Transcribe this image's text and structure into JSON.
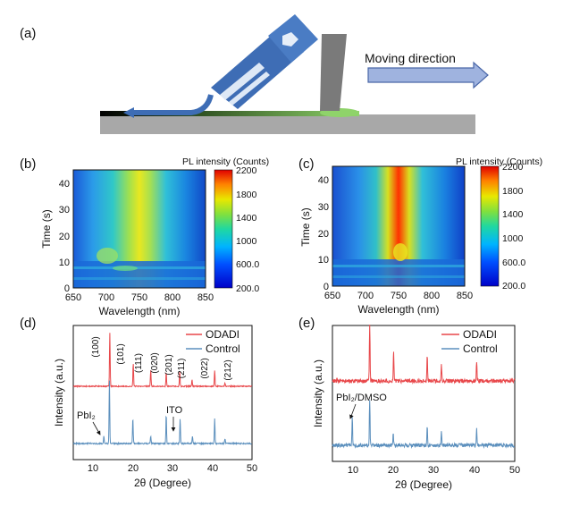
{
  "panels": {
    "a": {
      "label": "(a)",
      "arrow_text": "Moving direction"
    },
    "b": {
      "label": "(b)"
    },
    "c": {
      "label": "(c)"
    },
    "d": {
      "label": "(d)"
    },
    "e": {
      "label": "(e)"
    }
  },
  "colors": {
    "odadi": "#e8474a",
    "control": "#5b8fbd",
    "substrate": "#a8a8a8",
    "blade": "#7a7a7a",
    "nozzle": "#3e6db5",
    "film_green": "#8fd36a",
    "arrow_fill": "#9fb3df",
    "arrow_stroke": "#4a67a8"
  },
  "chart_data": [
    {
      "panel": "b",
      "type": "heatmap",
      "xlabel": "Wavelength (nm)",
      "ylabel": "Time (s)",
      "colorbar_title": "PL intensity (Counts)",
      "xlim": [
        650,
        850
      ],
      "ylim": [
        0,
        45
      ],
      "xticks": [
        "650",
        "700",
        "750",
        "800",
        "850"
      ],
      "yticks": [
        "0",
        "10",
        "20",
        "30",
        "40"
      ],
      "colorbar_range": [
        200,
        2200
      ],
      "colorbar_ticks": [
        "2200",
        "1800",
        "1400",
        "1000",
        "600.0",
        "200.0"
      ]
    },
    {
      "panel": "c",
      "type": "heatmap",
      "xlabel": "Wavelength (nm)",
      "ylabel": "Time (s)",
      "colorbar_title": "PL intensity (Counts)",
      "xlim": [
        650,
        850
      ],
      "ylim": [
        0,
        45
      ],
      "xticks": [
        "650",
        "700",
        "750",
        "800",
        "850"
      ],
      "yticks": [
        "0",
        "10",
        "20",
        "30",
        "40"
      ],
      "colorbar_range": [
        200,
        2200
      ],
      "colorbar_ticks": [
        "2200",
        "1800",
        "1400",
        "1000",
        "600.0",
        "200.0"
      ]
    },
    {
      "panel": "d",
      "type": "line",
      "xlabel": "2θ (Degree)",
      "ylabel": "Intensity (a.u.)",
      "xlim": [
        5,
        50
      ],
      "xticks": [
        "10",
        "20",
        "30",
        "40",
        "50"
      ],
      "legend": [
        "ODADI",
        "Control"
      ],
      "legend_position": "top-right",
      "series": [
        {
          "name": "ODADI",
          "peaks": [
            [
              14.2,
              1.0
            ],
            [
              20.1,
              0.42
            ],
            [
              24.5,
              0.3
            ],
            [
              28.4,
              0.26
            ],
            [
              31.8,
              0.28
            ],
            [
              34.9,
              0.12
            ],
            [
              40.6,
              0.3
            ],
            [
              43.2,
              0.06
            ]
          ]
        },
        {
          "name": "Control",
          "peaks": [
            [
              12.7,
              0.12
            ],
            [
              14.1,
              1.0
            ],
            [
              20.0,
              0.4
            ],
            [
              24.5,
              0.12
            ],
            [
              28.4,
              0.45
            ],
            [
              31.9,
              0.38
            ],
            [
              35.0,
              0.12
            ],
            [
              40.6,
              0.38
            ],
            [
              43.2,
              0.08
            ]
          ]
        }
      ],
      "annotations": {
        "peak_labels": [
          "(100)",
          "(101)",
          "(111)",
          "(020)",
          "(201)",
          "(211)",
          "(022)",
          "(212)"
        ],
        "pbi2": "PbI₂",
        "ito": "ITO"
      }
    },
    {
      "panel": "e",
      "type": "line",
      "xlabel": "2θ (Degree)",
      "ylabel": "Intensity (a.u.)",
      "xlim": [
        5,
        50
      ],
      "xticks": [
        "10",
        "20",
        "30",
        "40",
        "50"
      ],
      "legend": [
        "ODADI",
        "Control"
      ],
      "legend_position": "top-right",
      "series": [
        {
          "name": "ODADI",
          "peaks": [
            [
              14.2,
              1.0
            ],
            [
              20.1,
              0.5
            ],
            [
              28.4,
              0.45
            ],
            [
              31.9,
              0.3
            ],
            [
              40.6,
              0.35
            ]
          ]
        },
        {
          "name": "Control",
          "peaks": [
            [
              9.9,
              0.55
            ],
            [
              14.2,
              0.9
            ],
            [
              20.0,
              0.25
            ],
            [
              28.4,
              0.35
            ],
            [
              31.9,
              0.25
            ],
            [
              40.6,
              0.3
            ]
          ]
        }
      ],
      "annotations": {
        "pbi2_dmso": "PbI₂/DMSO"
      }
    }
  ]
}
